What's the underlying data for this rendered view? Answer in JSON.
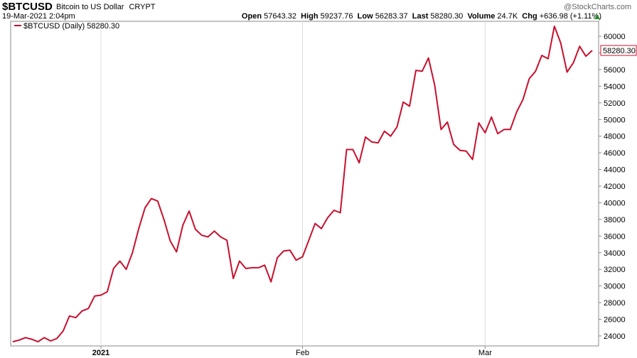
{
  "header": {
    "symbol": "$BTCUSD",
    "name": "Bitcoin to US Dollar",
    "exchange": "CRYPT",
    "watermark": "@StockCharts.com",
    "datetime": "19-Mar-2021 2:04pm",
    "open_label": "Open",
    "open": "57643.32",
    "high_label": "High",
    "high": "59237.76",
    "low_label": "Low",
    "low": "56283.37",
    "last_label": "Last",
    "last": "58280.30",
    "volume_label": "Volume",
    "volume": "24.7K",
    "chg_label": "Chg",
    "chg": "+636.98 (+1.11%)"
  },
  "chart_data": {
    "type": "line",
    "legend": "$BTCUSD (Daily) 58280.30",
    "last_value_label": "58280.30",
    "line_color": "#c8102e",
    "x_tick_labels": [
      "2021",
      "Feb",
      "Mar"
    ],
    "x_ticks_index": [
      14,
      46,
      75
    ],
    "ylim": [
      22800,
      61800
    ],
    "y_ticks": [
      24000,
      26000,
      28000,
      30000,
      32000,
      34000,
      36000,
      38000,
      40000,
      42000,
      44000,
      46000,
      48000,
      50000,
      52000,
      54000,
      56000,
      58000,
      60000
    ],
    "values": [
      23300,
      23500,
      23800,
      23600,
      23300,
      23800,
      23400,
      23700,
      24600,
      26400,
      26200,
      27000,
      27300,
      28800,
      28900,
      29300,
      32100,
      33000,
      32000,
      34000,
      36900,
      39400,
      40500,
      40200,
      38000,
      35400,
      34100,
      37300,
      39000,
      36800,
      36100,
      35900,
      36600,
      35900,
      35500,
      30900,
      33000,
      32100,
      32200,
      32200,
      32500,
      30500,
      33400,
      34200,
      34300,
      33100,
      33500,
      35500,
      37500,
      36900,
      38200,
      39100,
      38800,
      46400,
      46400,
      44800,
      47900,
      47300,
      47200,
      48600,
      48000,
      49100,
      52100,
      51600,
      55900,
      55800,
      57400,
      54100,
      48800,
      49700,
      47000,
      46300,
      46200,
      45200,
      49600,
      48400,
      50300,
      48300,
      48800,
      48800,
      50900,
      52400,
      54900,
      55800,
      57700,
      57300,
      61200,
      59200,
      55700,
      56800,
      58800,
      57600,
      58300
    ]
  }
}
